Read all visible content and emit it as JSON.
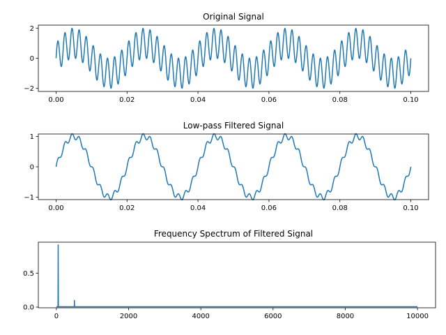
{
  "chart_data": [
    {
      "type": "line",
      "title": "Original Signal",
      "xlim": [
        -0.005,
        0.105
      ],
      "ylim": [
        -2.2,
        2.2
      ],
      "xticks": [
        0.0,
        0.02,
        0.04,
        0.06,
        0.08,
        0.1
      ],
      "xtick_labels": [
        "0.00",
        "0.02",
        "0.04",
        "0.06",
        "0.08",
        "0.10"
      ],
      "yticks": [
        -2,
        0,
        2
      ],
      "ytick_labels": [
        "−2",
        "0",
        "2"
      ],
      "grid": false,
      "series": [
        {
          "function": "sin(2π·50·t) + sin(2π·500·t)",
          "t_range": [
            0,
            0.1
          ],
          "samples": 1000,
          "color": "#1f77b4"
        }
      ]
    },
    {
      "type": "line",
      "title": "Low-pass Filtered Signal",
      "xlim": [
        -0.005,
        0.105
      ],
      "ylim": [
        -1.08,
        1.08
      ],
      "xticks": [
        0.0,
        0.02,
        0.04,
        0.06,
        0.08,
        0.1
      ],
      "xtick_labels": [
        "0.00",
        "0.02",
        "0.04",
        "0.06",
        "0.08",
        "0.10"
      ],
      "yticks": [
        -1,
        0,
        1
      ],
      "ytick_labels": [
        "−1",
        "0",
        "1"
      ],
      "grid": false,
      "series": [
        {
          "function": "sin(2π·50·t) + 0.1·sin(2π·500·t)",
          "t_range": [
            0,
            0.1
          ],
          "samples": 1000,
          "color": "#1f77b4"
        }
      ]
    },
    {
      "type": "line",
      "title": "Frequency Spectrum of Filtered Signal",
      "xlim": [
        -500,
        10500
      ],
      "ylim": [
        -0.01,
        0.96
      ],
      "xticks": [
        0,
        2000,
        4000,
        6000,
        8000,
        10000
      ],
      "xtick_labels": [
        "0",
        "2000",
        "4000",
        "6000",
        "8000",
        "10000"
      ],
      "yticks": [
        0.0,
        0.5
      ],
      "ytick_labels": [
        "0.0",
        "0.5"
      ],
      "grid": false,
      "series": [
        {
          "x_range": [
            0,
            10000
          ],
          "baseline": 0.005,
          "peaks": [
            {
              "x": 50,
              "y": 0.92
            },
            {
              "x": 500,
              "y": 0.1
            }
          ],
          "color": "#1f77b4"
        }
      ]
    }
  ]
}
